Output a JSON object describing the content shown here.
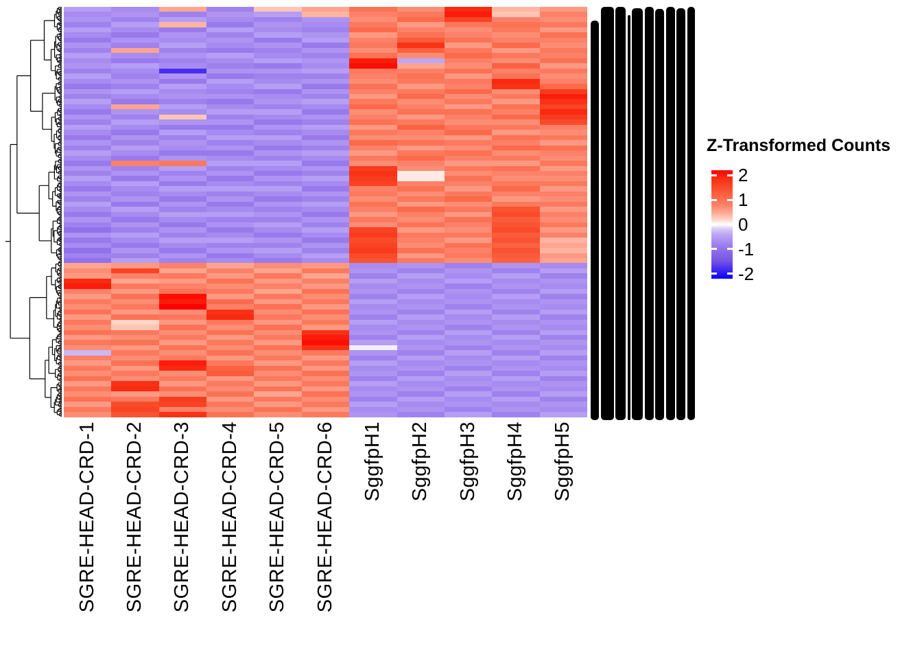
{
  "chart_data": {
    "type": "heatmap",
    "title": "",
    "legend": {
      "title": "Z-Transformed Counts",
      "tick_values": [
        2,
        1,
        0,
        -1,
        -2
      ],
      "tick_labels": [
        "2",
        "1",
        "0",
        "-1",
        "-2"
      ],
      "domain": [
        -2.2,
        2.2
      ],
      "orientation": "vertical",
      "position": "right"
    },
    "colorscale": [
      [
        -2.2,
        "#0800ff"
      ],
      [
        -1.5,
        "#7452e4"
      ],
      [
        -1.0,
        "#9271eb"
      ],
      [
        -0.7,
        "#a78bf0"
      ],
      [
        -0.4,
        "#bca7f4"
      ],
      [
        -0.15,
        "#ddd0f8"
      ],
      [
        0.0,
        "#ffffff"
      ],
      [
        0.2,
        "#fed5c8"
      ],
      [
        0.5,
        "#fda58f"
      ],
      [
        0.8,
        "#fc8168"
      ],
      [
        1.1,
        "#fb6a4a"
      ],
      [
        1.5,
        "#f94b2a"
      ],
      [
        1.9,
        "#f92a10"
      ],
      [
        2.2,
        "#ff0000"
      ]
    ],
    "columns": [
      "SGRE-HEAD-CRD-1",
      "SGRE-HEAD-CRD-2",
      "SGRE-HEAD-CRD-3",
      "SGRE-HEAD-CRD-4",
      "SGRE-HEAD-CRD-5",
      "SGRE-HEAD-CRD-6",
      "SggfpH1",
      "SggfpH2",
      "SggfpH3",
      "SggfpH4",
      "SggfpH5"
    ],
    "column_groups": [
      {
        "name": "SGRE-HEAD-CRD",
        "columns": [
          0,
          1,
          2,
          3,
          4,
          5
        ]
      },
      {
        "name": "SggfpH",
        "columns": [
          6,
          7,
          8,
          9,
          10
        ]
      }
    ],
    "row_dendrogram": {
      "side": "left",
      "leaves": 400,
      "root_split_fraction": 0.62
    },
    "row_labels": {
      "legible": false,
      "rendered_as": "overplotted-black-bars",
      "bars": [
        [
          12,
          22
        ],
        [
          19,
          2
        ],
        [
          15,
          2
        ],
        [
          4,
          14
        ],
        [
          16,
          4
        ],
        [
          13,
          2
        ],
        [
          13,
          5
        ],
        [
          13,
          2
        ],
        [
          13,
          4
        ],
        [
          11,
          2
        ]
      ],
      "bar_gap": 2.5
    },
    "rows": [
      [
        -0.5,
        -0.7,
        0.5,
        -0.8,
        0.3,
        0.5,
        1.0,
        0.7,
        1.9,
        0.4,
        0.6
      ],
      [
        -0.7,
        -0.6,
        -0.8,
        -0.6,
        -0.5,
        0.4,
        0.8,
        0.9,
        2.0,
        0.3,
        0.8
      ],
      [
        -0.6,
        -0.8,
        -0.5,
        -0.7,
        -0.8,
        -0.6,
        0.7,
        1.1,
        1.6,
        0.8,
        0.7
      ],
      [
        -0.8,
        -0.5,
        0.4,
        -0.9,
        -0.6,
        -0.7,
        0.9,
        0.6,
        0.9,
        1.0,
        0.9
      ],
      [
        -0.5,
        -0.7,
        -0.9,
        -0.5,
        -0.7,
        -0.8,
        1.1,
        0.8,
        0.7,
        0.9,
        0.6
      ],
      [
        -0.7,
        -0.9,
        -0.6,
        -0.8,
        -0.5,
        -0.6,
        0.6,
        1.0,
        0.8,
        0.7,
        1.0
      ],
      [
        -0.9,
        -0.6,
        -0.7,
        -0.6,
        -0.9,
        -0.5,
        0.8,
        1.3,
        1.0,
        0.8,
        0.8
      ],
      [
        -0.6,
        -0.8,
        -0.5,
        -0.7,
        -0.6,
        -0.9,
        0.9,
        1.8,
        0.6,
        1.1,
        0.7
      ],
      [
        -0.8,
        0.5,
        -0.8,
        -0.9,
        -0.8,
        -0.6,
        0.7,
        1.2,
        0.9,
        0.6,
        0.9
      ],
      [
        -0.5,
        -0.7,
        -0.6,
        -0.5,
        -0.7,
        -0.8,
        1.0,
        0.7,
        1.1,
        0.9,
        0.8
      ],
      [
        -0.7,
        -0.9,
        -0.8,
        -0.7,
        -0.5,
        -0.6,
        2.0,
        -0.4,
        0.8,
        0.7,
        1.0
      ],
      [
        -0.6,
        -0.5,
        -0.7,
        -0.8,
        -0.9,
        -0.7,
        2.1,
        0.5,
        0.7,
        1.2,
        0.6
      ],
      [
        -0.8,
        -0.7,
        -1.8,
        -0.6,
        -0.6,
        -0.5,
        0.9,
        0.8,
        1.0,
        0.8,
        0.9
      ],
      [
        -0.5,
        -0.8,
        -0.6,
        -0.9,
        -0.8,
        -0.8,
        0.8,
        1.0,
        0.6,
        1.0,
        0.7
      ],
      [
        -0.7,
        -0.6,
        -0.9,
        -0.5,
        -0.7,
        -0.6,
        0.7,
        0.9,
        0.9,
        1.9,
        0.8
      ],
      [
        -0.9,
        -0.8,
        -0.5,
        -0.7,
        -0.5,
        -0.9,
        1.0,
        0.6,
        0.8,
        1.8,
        1.1
      ],
      [
        -0.6,
        -0.5,
        -0.7,
        -0.8,
        -0.9,
        -0.6,
        0.8,
        0.9,
        1.1,
        0.7,
        1.7
      ],
      [
        -0.8,
        -0.7,
        -0.6,
        -0.6,
        -0.7,
        -0.8,
        0.6,
        1.1,
        0.7,
        0.9,
        2.0
      ],
      [
        -0.5,
        -0.9,
        -0.8,
        -0.9,
        -0.6,
        -0.5,
        0.9,
        0.7,
        0.9,
        0.6,
        1.8
      ],
      [
        -0.7,
        0.5,
        -0.5,
        -0.7,
        -0.8,
        -0.7,
        1.1,
        0.8,
        0.6,
        1.0,
        1.6
      ],
      [
        -0.9,
        -0.6,
        -0.7,
        -0.5,
        -0.5,
        -0.9,
        0.7,
        1.0,
        1.0,
        0.8,
        1.9
      ],
      [
        -0.6,
        -0.8,
        0.3,
        -0.8,
        -0.7,
        -0.6,
        0.8,
        0.6,
        0.8,
        1.1,
        1.7
      ],
      [
        -0.8,
        -0.5,
        -0.6,
        -0.6,
        -0.9,
        -0.8,
        1.0,
        0.9,
        0.7,
        0.7,
        1.5
      ],
      [
        -0.5,
        -0.7,
        -0.9,
        -0.9,
        -0.6,
        -0.5,
        0.6,
        1.2,
        0.9,
        0.9,
        0.8
      ],
      [
        -0.7,
        -0.9,
        -0.5,
        -0.7,
        -0.8,
        -0.7,
        0.9,
        0.8,
        1.1,
        0.6,
        0.7
      ],
      [
        -0.9,
        -0.6,
        -0.8,
        -0.5,
        -0.5,
        -0.9,
        0.7,
        0.7,
        0.6,
        1.0,
        0.9
      ],
      [
        -0.6,
        -0.8,
        -0.6,
        -0.8,
        -0.7,
        -0.6,
        1.1,
        1.0,
        0.9,
        0.8,
        0.6
      ],
      [
        -0.8,
        -0.5,
        -0.7,
        -0.6,
        -0.9,
        -0.8,
        0.8,
        0.6,
        0.7,
        1.1,
        1.0
      ],
      [
        -0.5,
        -0.7,
        -0.9,
        -0.9,
        -0.6,
        -0.5,
        0.6,
        0.9,
        1.0,
        0.7,
        0.8
      ],
      [
        -0.7,
        -0.9,
        -0.6,
        -0.7,
        -0.8,
        -0.7,
        0.9,
        1.1,
        0.8,
        0.9,
        0.7
      ],
      [
        -0.9,
        0.8,
        0.9,
        -0.5,
        -0.5,
        -0.9,
        0.7,
        0.8,
        0.6,
        0.6,
        0.9
      ],
      [
        -0.6,
        -0.8,
        -0.5,
        -0.8,
        -0.7,
        -0.6,
        1.7,
        0.7,
        0.9,
        1.0,
        0.6
      ],
      [
        -0.8,
        -0.6,
        -0.8,
        -0.6,
        -0.9,
        -0.8,
        1.8,
        0.1,
        0.7,
        0.8,
        0.8
      ],
      [
        -0.5,
        -0.9,
        -0.6,
        -0.9,
        -0.6,
        -0.5,
        1.7,
        0.1,
        1.0,
        0.7,
        0.7
      ],
      [
        -0.7,
        -0.5,
        -0.9,
        -0.7,
        -0.8,
        -0.7,
        1.6,
        0.8,
        0.8,
        0.9,
        0.9
      ],
      [
        -0.9,
        -0.7,
        -0.5,
        -0.5,
        -0.5,
        -0.9,
        0.8,
        1.0,
        0.6,
        1.1,
        0.6
      ],
      [
        -0.6,
        -0.8,
        -0.7,
        -0.8,
        -0.7,
        -0.6,
        0.9,
        0.7,
        0.9,
        0.8,
        0.8
      ],
      [
        -0.8,
        -0.6,
        -0.9,
        -0.6,
        -0.9,
        -0.8,
        0.7,
        0.9,
        1.1,
        0.6,
        0.7
      ],
      [
        -0.5,
        -0.9,
        -0.6,
        -0.9,
        -0.6,
        -0.5,
        1.0,
        0.6,
        0.7,
        0.9,
        0.9
      ],
      [
        -0.7,
        -0.5,
        -0.8,
        -0.7,
        -0.8,
        -0.7,
        0.8,
        1.1,
        0.9,
        1.4,
        0.6
      ],
      [
        -0.9,
        -0.7,
        -0.5,
        -0.5,
        -0.6,
        -0.9,
        0.6,
        0.8,
        0.6,
        1.5,
        0.8
      ],
      [
        -0.6,
        -0.9,
        -0.7,
        -0.8,
        -0.8,
        -0.6,
        0.9,
        0.7,
        1.0,
        1.3,
        0.7
      ],
      [
        -0.8,
        -0.6,
        -0.9,
        -0.6,
        -0.5,
        -0.8,
        0.7,
        1.0,
        0.8,
        1.4,
        0.9
      ],
      [
        -1.0,
        -0.8,
        -0.6,
        -0.9,
        -0.7,
        -0.5,
        1.6,
        0.6,
        0.7,
        1.5,
        0.6
      ],
      [
        -0.6,
        -0.5,
        -0.8,
        -0.7,
        -0.9,
        -0.7,
        1.7,
        0.9,
        0.9,
        1.3,
        0.8
      ],
      [
        -0.9,
        -0.7,
        -0.5,
        -0.5,
        -0.6,
        -0.9,
        1.5,
        0.8,
        0.6,
        1.4,
        0.4
      ],
      [
        -0.7,
        -0.9,
        -0.7,
        -0.8,
        -0.8,
        -0.6,
        1.6,
        0.7,
        1.0,
        1.2,
        0.5
      ],
      [
        -1.0,
        -0.6,
        -0.9,
        -0.6,
        -0.5,
        -0.8,
        1.7,
        1.0,
        0.8,
        1.4,
        0.4
      ],
      [
        -0.8,
        -0.8,
        -0.6,
        -0.9,
        -0.7,
        -0.5,
        1.5,
        0.6,
        0.9,
        1.3,
        0.6
      ],
      [
        -1.0,
        -0.5,
        -0.8,
        -0.7,
        -0.9,
        -0.7,
        1.4,
        0.9,
        0.7,
        1.2,
        0.5
      ],
      [
        0.5,
        0.6,
        0.8,
        0.5,
        0.7,
        0.6,
        -0.7,
        -0.6,
        -0.8,
        -0.6,
        -0.7
      ],
      [
        0.7,
        1.6,
        0.5,
        0.8,
        0.5,
        0.9,
        -0.6,
        -0.8,
        -0.6,
        -0.8,
        -0.5
      ],
      [
        0.6,
        0.8,
        0.9,
        0.6,
        0.9,
        0.5,
        -0.8,
        -0.5,
        -0.7,
        -0.5,
        -0.8
      ],
      [
        1.9,
        0.5,
        0.6,
        1.0,
        0.6,
        0.8,
        -0.5,
        -0.7,
        -0.5,
        -0.7,
        -0.6
      ],
      [
        2.0,
        0.9,
        0.8,
        0.7,
        0.8,
        0.6,
        -0.7,
        -0.6,
        -0.8,
        -0.6,
        -0.7
      ],
      [
        0.8,
        0.6,
        1.0,
        0.9,
        0.5,
        1.0,
        -0.6,
        -0.8,
        -0.6,
        -0.8,
        -0.5
      ],
      [
        0.6,
        1.0,
        2.1,
        0.6,
        0.9,
        0.7,
        -0.8,
        -0.5,
        -0.7,
        -0.5,
        -0.8
      ],
      [
        0.9,
        0.7,
        2.0,
        1.1,
        0.6,
        0.9,
        -0.5,
        -0.7,
        -0.6,
        -0.7,
        -0.6
      ],
      [
        0.7,
        0.9,
        2.2,
        0.8,
        1.0,
        0.6,
        -0.7,
        -0.6,
        -0.8,
        -0.6,
        -0.7
      ],
      [
        1.0,
        0.6,
        0.7,
        1.8,
        0.7,
        1.0,
        -0.6,
        -0.8,
        -0.5,
        -0.8,
        -0.5
      ],
      [
        0.6,
        1.0,
        0.9,
        1.9,
        0.9,
        0.7,
        -0.8,
        -0.5,
        -0.7,
        -0.5,
        -0.8
      ],
      [
        0.9,
        0.2,
        0.6,
        0.9,
        0.6,
        0.9,
        -0.5,
        -0.7,
        -0.6,
        -0.7,
        -0.6
      ],
      [
        0.7,
        0.3,
        1.0,
        0.7,
        1.0,
        0.6,
        -0.7,
        -0.6,
        -0.8,
        -0.6,
        -0.7
      ],
      [
        1.0,
        0.9,
        0.7,
        1.0,
        0.7,
        1.8,
        -0.6,
        -0.8,
        -0.5,
        -0.8,
        -0.5
      ],
      [
        0.6,
        0.7,
        0.9,
        0.6,
        0.9,
        2.0,
        -0.8,
        -0.5,
        -0.7,
        -0.5,
        -0.8
      ],
      [
        0.9,
        1.0,
        0.6,
        0.9,
        0.6,
        2.1,
        -0.5,
        -0.7,
        -0.6,
        -0.7,
        -0.6
      ],
      [
        0.7,
        0.6,
        1.0,
        0.7,
        1.0,
        1.8,
        -0.05,
        -0.6,
        -0.8,
        -0.6,
        -0.7
      ],
      [
        -0.3,
        0.9,
        0.7,
        1.0,
        0.7,
        0.9,
        -0.6,
        -0.8,
        -0.5,
        -0.8,
        -0.5
      ],
      [
        0.8,
        0.7,
        0.9,
        0.6,
        0.9,
        0.6,
        -0.8,
        -0.5,
        -0.7,
        -0.5,
        -0.8
      ],
      [
        0.6,
        1.0,
        2.0,
        0.9,
        0.6,
        0.9,
        -0.5,
        -0.7,
        -0.6,
        -0.7,
        -0.6
      ],
      [
        0.9,
        0.6,
        1.9,
        1.2,
        1.0,
        0.6,
        -0.7,
        -0.6,
        -0.8,
        -0.6,
        -0.7
      ],
      [
        0.7,
        0.9,
        0.7,
        1.3,
        0.7,
        1.0,
        -0.6,
        -0.8,
        -0.5,
        -0.8,
        -0.5
      ],
      [
        1.0,
        0.7,
        0.9,
        0.6,
        0.9,
        0.7,
        -0.8,
        -0.5,
        -0.7,
        -0.5,
        -0.8
      ],
      [
        0.6,
        1.8,
        0.6,
        0.9,
        0.6,
        0.9,
        -0.5,
        -0.7,
        -0.6,
        -0.7,
        -0.6
      ],
      [
        0.9,
        1.9,
        1.0,
        0.7,
        1.0,
        0.6,
        -0.7,
        -0.6,
        -0.8,
        -0.6,
        -0.7
      ],
      [
        0.7,
        0.6,
        0.7,
        1.0,
        0.5,
        1.0,
        -0.6,
        -0.8,
        -0.5,
        -0.8,
        -0.5
      ],
      [
        1.0,
        0.9,
        1.7,
        0.6,
        0.9,
        0.7,
        -0.8,
        -0.5,
        -0.7,
        -0.5,
        -0.8
      ],
      [
        0.6,
        1.5,
        1.6,
        0.9,
        0.6,
        0.9,
        -0.5,
        -0.7,
        -0.6,
        -0.7,
        -0.6
      ],
      [
        0.9,
        1.6,
        0.8,
        0.7,
        1.0,
        0.6,
        -0.7,
        -0.6,
        -0.8,
        -0.6,
        -0.7
      ],
      [
        0.7,
        1.4,
        1.8,
        1.0,
        0.7,
        0.9,
        -0.6,
        -0.8,
        -0.5,
        -0.8,
        -0.5
      ]
    ]
  }
}
